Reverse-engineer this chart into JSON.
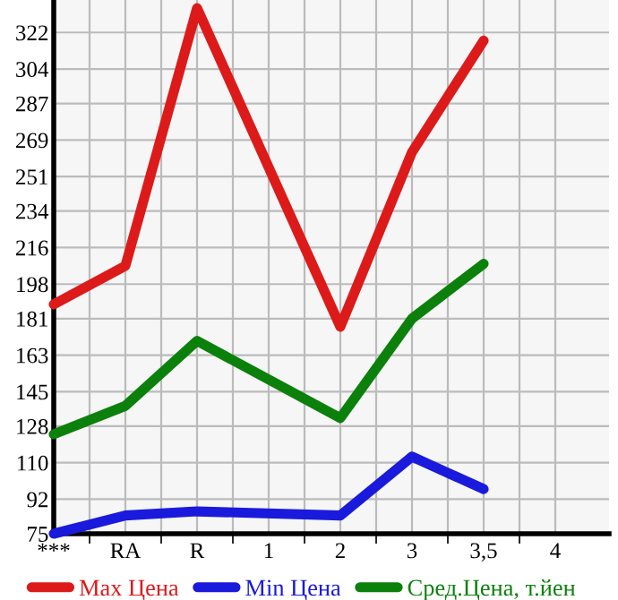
{
  "chart_data": {
    "type": "line",
    "categories": [
      "***",
      "RA",
      "R",
      "1",
      "2",
      "3",
      "3,5",
      "4"
    ],
    "series": [
      {
        "name": "Max Цена",
        "color": "#dd1a1a",
        "values": [
          188,
          207,
          334,
          null,
          177,
          263,
          318,
          null
        ]
      },
      {
        "name": "Min Цена",
        "color": "#1a1add",
        "values": [
          75,
          84,
          86,
          null,
          84,
          113,
          97,
          null
        ]
      },
      {
        "name": "Сред.Цена, т.йен",
        "color": "#0b800b",
        "values": [
          124,
          138,
          170,
          null,
          132,
          181,
          208,
          null
        ]
      }
    ],
    "ylim": [
      75,
      338
    ],
    "yticks": [
      75,
      92,
      110,
      128,
      145,
      163,
      181,
      198,
      216,
      234,
      251,
      269,
      287,
      304,
      322
    ],
    "grid": true,
    "legend": "bottom",
    "marker": "none",
    "line_style": "solid"
  }
}
